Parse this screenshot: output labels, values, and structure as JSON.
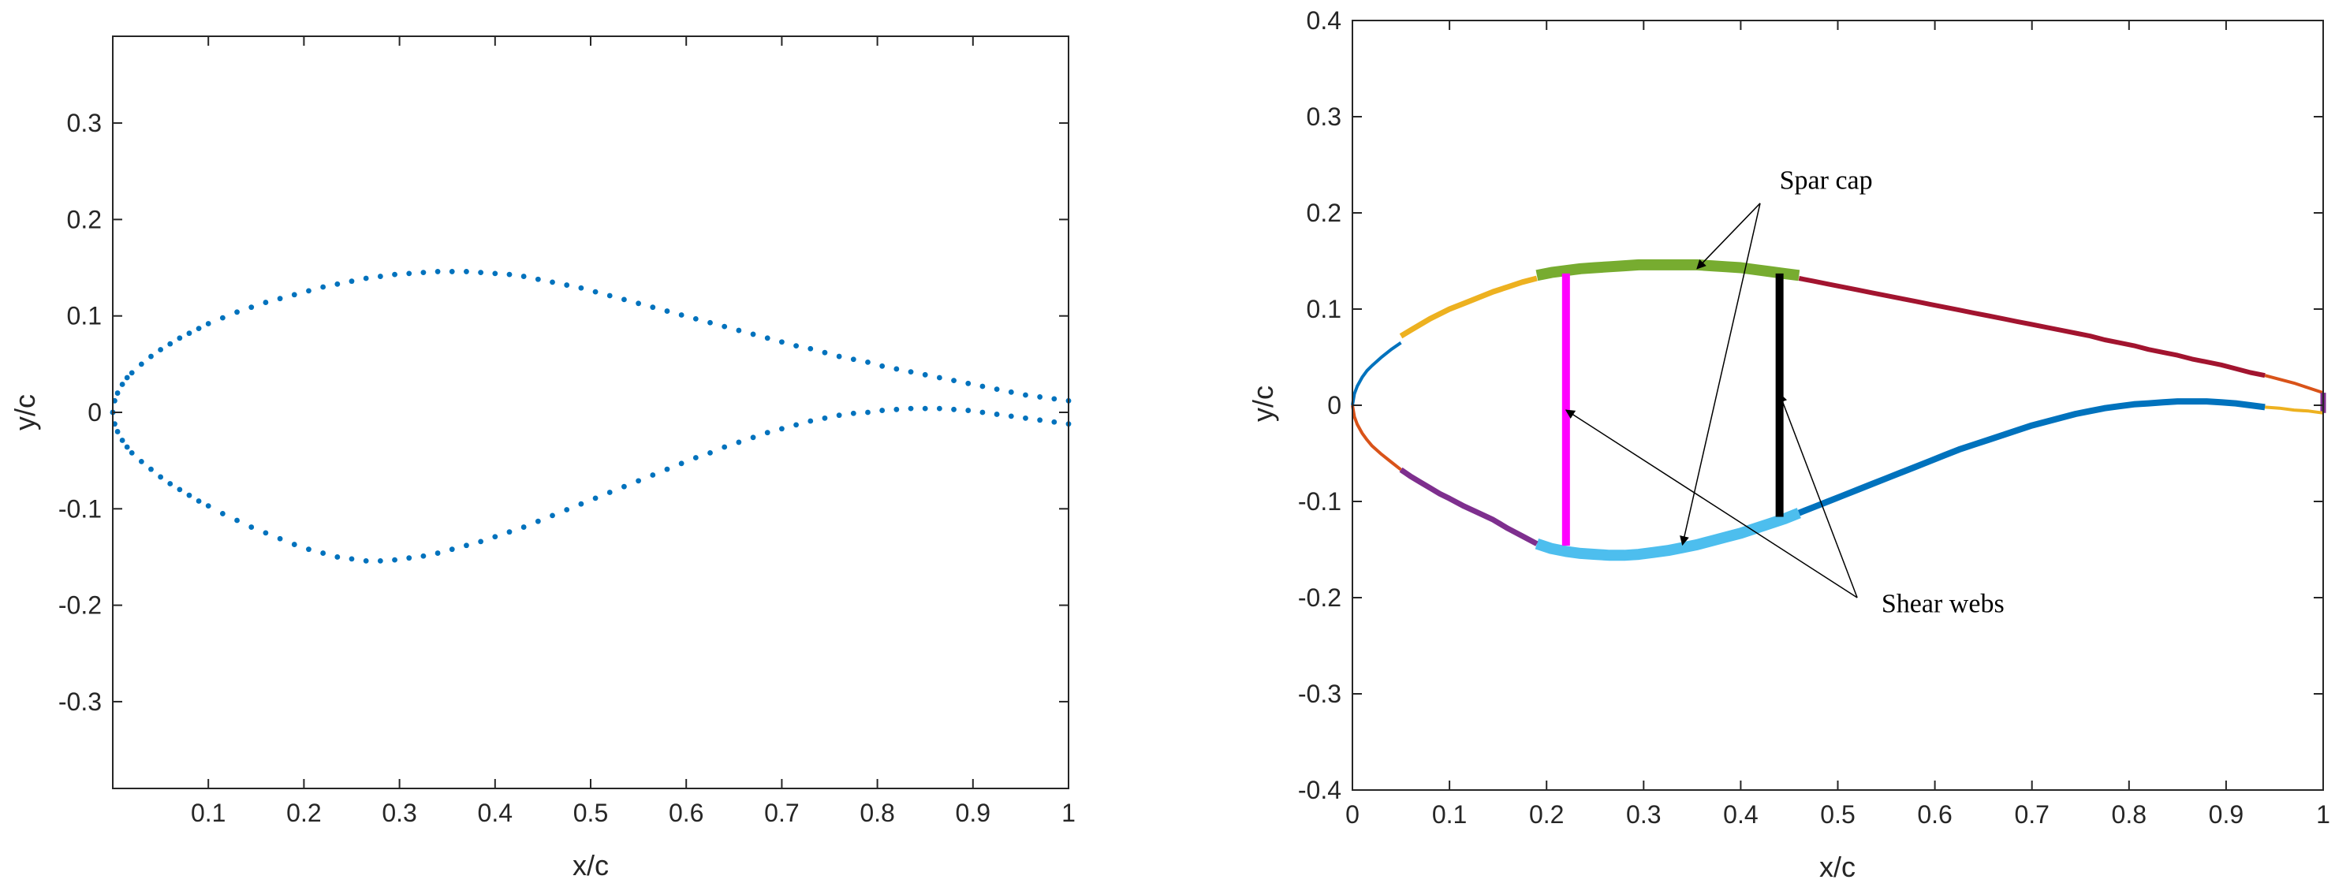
{
  "chart_data": [
    {
      "type": "scatter",
      "title": "",
      "xlabel": "x/c",
      "ylabel": "y/c",
      "xlim": [
        0,
        1
      ],
      "ylim": [
        -0.39,
        0.39
      ],
      "x_ticks": [
        0.1,
        0.2,
        0.3,
        0.4,
        0.5,
        0.6,
        0.7,
        0.8,
        0.9,
        1
      ],
      "x_tick_labels": [
        "0.1",
        "0.2",
        "0.3",
        "0.4",
        "0.5",
        "0.6",
        "0.7",
        "0.8",
        "0.9",
        "1"
      ],
      "y_ticks": [
        -0.3,
        -0.2,
        -0.1,
        0,
        0.1,
        0.2,
        0.3
      ],
      "y_tick_labels": [
        "-0.3",
        "-0.2",
        "-0.1",
        "0",
        "0.1",
        "0.2",
        "0.3"
      ],
      "grid": false,
      "marker_color": "#0072BD",
      "series": [
        {
          "x": [
            0.0,
            0.002,
            0.005,
            0.01,
            0.015,
            0.02,
            0.03,
            0.04,
            0.05,
            0.06,
            0.07,
            0.08,
            0.09,
            0.1,
            0.115,
            0.13,
            0.145,
            0.16,
            0.175,
            0.19,
            0.205,
            0.22,
            0.235,
            0.25,
            0.265,
            0.28,
            0.295,
            0.31,
            0.325,
            0.34,
            0.355,
            0.37,
            0.385,
            0.4,
            0.415,
            0.43,
            0.445,
            0.46,
            0.475,
            0.49,
            0.505,
            0.52,
            0.535,
            0.55,
            0.565,
            0.58,
            0.595,
            0.61,
            0.625,
            0.64,
            0.655,
            0.67,
            0.685,
            0.7,
            0.715,
            0.73,
            0.745,
            0.76,
            0.775,
            0.79,
            0.805,
            0.82,
            0.835,
            0.85,
            0.865,
            0.88,
            0.895,
            0.91,
            0.925,
            0.94,
            0.955,
            0.97,
            0.985,
            1.0
          ],
          "y": [
            0.0,
            0.012,
            0.02,
            0.029,
            0.036,
            0.041,
            0.05,
            0.058,
            0.065,
            0.071,
            0.077,
            0.082,
            0.087,
            0.092,
            0.098,
            0.104,
            0.109,
            0.114,
            0.118,
            0.122,
            0.126,
            0.13,
            0.133,
            0.136,
            0.139,
            0.141,
            0.143,
            0.144,
            0.145,
            0.146,
            0.146,
            0.146,
            0.145,
            0.144,
            0.143,
            0.141,
            0.138,
            0.135,
            0.132,
            0.129,
            0.125,
            0.121,
            0.117,
            0.113,
            0.109,
            0.105,
            0.101,
            0.097,
            0.093,
            0.089,
            0.085,
            0.081,
            0.077,
            0.073,
            0.069,
            0.066,
            0.062,
            0.058,
            0.055,
            0.052,
            0.048,
            0.045,
            0.042,
            0.039,
            0.036,
            0.033,
            0.03,
            0.027,
            0.024,
            0.021,
            0.018,
            0.016,
            0.014,
            0.012
          ]
        },
        {
          "x": [
            0.0,
            0.002,
            0.005,
            0.01,
            0.015,
            0.02,
            0.03,
            0.04,
            0.05,
            0.06,
            0.07,
            0.08,
            0.09,
            0.1,
            0.115,
            0.13,
            0.145,
            0.16,
            0.175,
            0.19,
            0.205,
            0.22,
            0.235,
            0.25,
            0.265,
            0.28,
            0.295,
            0.31,
            0.325,
            0.34,
            0.355,
            0.37,
            0.385,
            0.4,
            0.415,
            0.43,
            0.445,
            0.46,
            0.475,
            0.49,
            0.505,
            0.52,
            0.535,
            0.55,
            0.565,
            0.58,
            0.595,
            0.61,
            0.625,
            0.64,
            0.655,
            0.67,
            0.685,
            0.7,
            0.715,
            0.73,
            0.745,
            0.76,
            0.775,
            0.79,
            0.805,
            0.82,
            0.835,
            0.85,
            0.865,
            0.88,
            0.895,
            0.91,
            0.925,
            0.94,
            0.955,
            0.97,
            0.985,
            1.0
          ],
          "y": [
            0.0,
            -0.012,
            -0.02,
            -0.029,
            -0.036,
            -0.042,
            -0.051,
            -0.059,
            -0.067,
            -0.074,
            -0.08,
            -0.086,
            -0.092,
            -0.097,
            -0.105,
            -0.112,
            -0.119,
            -0.125,
            -0.131,
            -0.137,
            -0.142,
            -0.146,
            -0.15,
            -0.152,
            -0.154,
            -0.154,
            -0.153,
            -0.151,
            -0.149,
            -0.146,
            -0.142,
            -0.138,
            -0.134,
            -0.129,
            -0.124,
            -0.119,
            -0.113,
            -0.107,
            -0.101,
            -0.095,
            -0.089,
            -0.083,
            -0.077,
            -0.071,
            -0.065,
            -0.059,
            -0.053,
            -0.047,
            -0.042,
            -0.036,
            -0.031,
            -0.026,
            -0.021,
            -0.017,
            -0.013,
            -0.009,
            -0.006,
            -0.003,
            -0.001,
            0.0,
            0.002,
            0.003,
            0.004,
            0.004,
            0.004,
            0.003,
            0.002,
            0.0,
            -0.002,
            -0.004,
            -0.006,
            -0.008,
            -0.01,
            -0.012
          ]
        }
      ]
    },
    {
      "type": "line",
      "title": "",
      "xlabel": "x/c",
      "ylabel": "y/c",
      "xlim": [
        0,
        1
      ],
      "ylim": [
        -0.4,
        0.4
      ],
      "x_ticks": [
        0,
        0.1,
        0.2,
        0.3,
        0.4,
        0.5,
        0.6,
        0.7,
        0.8,
        0.9,
        1
      ],
      "x_tick_labels": [
        "0",
        "0.1",
        "0.2",
        "0.3",
        "0.4",
        "0.5",
        "0.6",
        "0.7",
        "0.8",
        "0.9",
        "1"
      ],
      "y_ticks": [
        -0.4,
        -0.3,
        -0.2,
        -0.1,
        0,
        0.1,
        0.2,
        0.3,
        0.4
      ],
      "y_tick_labels": [
        "-0.4",
        "-0.3",
        "-0.2",
        "-0.1",
        "0",
        "0.1",
        "0.2",
        "0.3",
        "0.4"
      ],
      "grid": false,
      "series": [
        {
          "color": "#0072BD",
          "width": 4,
          "x": [
            0.0,
            0.002,
            0.005,
            0.01,
            0.015,
            0.02,
            0.03,
            0.04,
            0.05
          ],
          "y": [
            0.0,
            0.012,
            0.02,
            0.029,
            0.036,
            0.041,
            0.05,
            0.058,
            0.065
          ]
        },
        {
          "color": "#EDB120",
          "width": 7,
          "x": [
            0.05,
            0.06,
            0.07,
            0.08,
            0.09,
            0.1,
            0.115,
            0.13,
            0.145,
            0.16,
            0.175,
            0.19
          ],
          "y": [
            0.072,
            0.078,
            0.084,
            0.09,
            0.095,
            0.1,
            0.106,
            0.112,
            0.118,
            0.123,
            0.128,
            0.132
          ]
        },
        {
          "color": "#77AC30",
          "width": 14,
          "x": [
            0.19,
            0.205,
            0.22,
            0.235,
            0.25,
            0.265,
            0.28,
            0.295,
            0.31,
            0.325,
            0.34,
            0.355,
            0.37,
            0.385,
            0.4,
            0.415,
            0.43,
            0.445,
            0.46
          ],
          "y": [
            0.135,
            0.138,
            0.14,
            0.142,
            0.143,
            0.144,
            0.145,
            0.146,
            0.146,
            0.146,
            0.146,
            0.146,
            0.145,
            0.144,
            0.143,
            0.141,
            0.139,
            0.137,
            0.135
          ]
        },
        {
          "color": "#A2142F",
          "width": 6,
          "x": [
            0.46,
            0.475,
            0.49,
            0.505,
            0.52,
            0.535,
            0.55,
            0.565,
            0.58,
            0.595,
            0.61,
            0.625,
            0.64,
            0.655,
            0.67,
            0.685,
            0.7,
            0.715,
            0.73,
            0.745,
            0.76,
            0.775,
            0.79,
            0.805,
            0.82,
            0.835,
            0.85,
            0.865,
            0.88,
            0.895,
            0.91,
            0.925,
            0.94
          ],
          "y": [
            0.132,
            0.129,
            0.126,
            0.123,
            0.12,
            0.117,
            0.114,
            0.111,
            0.108,
            0.105,
            0.102,
            0.099,
            0.096,
            0.093,
            0.09,
            0.087,
            0.084,
            0.081,
            0.078,
            0.075,
            0.072,
            0.068,
            0.065,
            0.062,
            0.058,
            0.055,
            0.052,
            0.048,
            0.045,
            0.042,
            0.038,
            0.034,
            0.031
          ]
        },
        {
          "color": "#D95319",
          "width": 4,
          "x": [
            0.94,
            0.955,
            0.97,
            0.985,
            1.0
          ],
          "y": [
            0.031,
            0.027,
            0.023,
            0.018,
            0.013
          ]
        },
        {
          "color": "#7E2F8E",
          "width": 7,
          "x": [
            1.0,
            1.0
          ],
          "y": [
            0.013,
            -0.008
          ]
        },
        {
          "color": "#EDB120",
          "width": 4,
          "x": [
            0.94,
            0.955,
            0.97,
            0.985,
            1.0
          ],
          "y": [
            -0.002,
            -0.003,
            -0.005,
            -0.006,
            -0.008
          ]
        },
        {
          "color": "#0072BD",
          "width": 8,
          "x": [
            0.46,
            0.475,
            0.49,
            0.505,
            0.52,
            0.535,
            0.55,
            0.565,
            0.58,
            0.595,
            0.61,
            0.625,
            0.64,
            0.655,
            0.67,
            0.685,
            0.7,
            0.715,
            0.73,
            0.745,
            0.76,
            0.775,
            0.79,
            0.805,
            0.82,
            0.835,
            0.85,
            0.865,
            0.88,
            0.895,
            0.91,
            0.925,
            0.94
          ],
          "y": [
            -0.112,
            -0.106,
            -0.1,
            -0.094,
            -0.088,
            -0.082,
            -0.076,
            -0.07,
            -0.064,
            -0.058,
            -0.052,
            -0.046,
            -0.041,
            -0.036,
            -0.031,
            -0.026,
            -0.021,
            -0.017,
            -0.013,
            -0.009,
            -0.006,
            -0.003,
            -0.001,
            0.001,
            0.002,
            0.003,
            0.004,
            0.004,
            0.004,
            0.003,
            0.002,
            0.0,
            -0.002
          ]
        },
        {
          "color": "#4DBEEE",
          "width": 14,
          "x": [
            0.19,
            0.205,
            0.22,
            0.235,
            0.25,
            0.265,
            0.28,
            0.295,
            0.31,
            0.325,
            0.34,
            0.355,
            0.37,
            0.385,
            0.4,
            0.415,
            0.43,
            0.445,
            0.46
          ],
          "y": [
            -0.144,
            -0.149,
            -0.152,
            -0.154,
            -0.155,
            -0.156,
            -0.156,
            -0.155,
            -0.153,
            -0.151,
            -0.148,
            -0.145,
            -0.141,
            -0.137,
            -0.133,
            -0.128,
            -0.123,
            -0.118,
            -0.112
          ]
        },
        {
          "color": "#7E2F8E",
          "width": 7,
          "x": [
            0.05,
            0.06,
            0.07,
            0.08,
            0.09,
            0.1,
            0.115,
            0.13,
            0.145,
            0.16,
            0.175,
            0.19
          ],
          "y": [
            -0.067,
            -0.074,
            -0.08,
            -0.086,
            -0.092,
            -0.097,
            -0.105,
            -0.112,
            -0.119,
            -0.128,
            -0.136,
            -0.144
          ]
        },
        {
          "color": "#D95319",
          "width": 4,
          "x": [
            0.0,
            0.002,
            0.005,
            0.01,
            0.015,
            0.02,
            0.03,
            0.04,
            0.05
          ],
          "y": [
            0.0,
            -0.012,
            -0.02,
            -0.029,
            -0.036,
            -0.042,
            -0.051,
            -0.059,
            -0.067
          ]
        }
      ],
      "webs": [
        {
          "color": "#FF00FF",
          "width": 10,
          "x": 0.22,
          "y_top": 0.137,
          "y_bottom": -0.146
        },
        {
          "color": "#000000",
          "width": 10,
          "x": 0.44,
          "y_top": 0.137,
          "y_bottom": -0.116
        }
      ],
      "annotations": [
        {
          "text": "Spar cap",
          "text_x": 0.44,
          "text_y": 0.225,
          "anchor_x": 0.42,
          "anchor_y": 0.21,
          "arrows": [
            {
              "x": 0.355,
              "y": 0.142
            },
            {
              "x": 0.34,
              "y": -0.145
            }
          ]
        },
        {
          "text": "Shear webs",
          "text_x": 0.545,
          "text_y": -0.215,
          "anchor_x": 0.52,
          "anchor_y": -0.2,
          "arrows": [
            {
              "x": 0.22,
              "y": -0.005
            },
            {
              "x": 0.44,
              "y": 0.012
            }
          ]
        }
      ]
    }
  ]
}
